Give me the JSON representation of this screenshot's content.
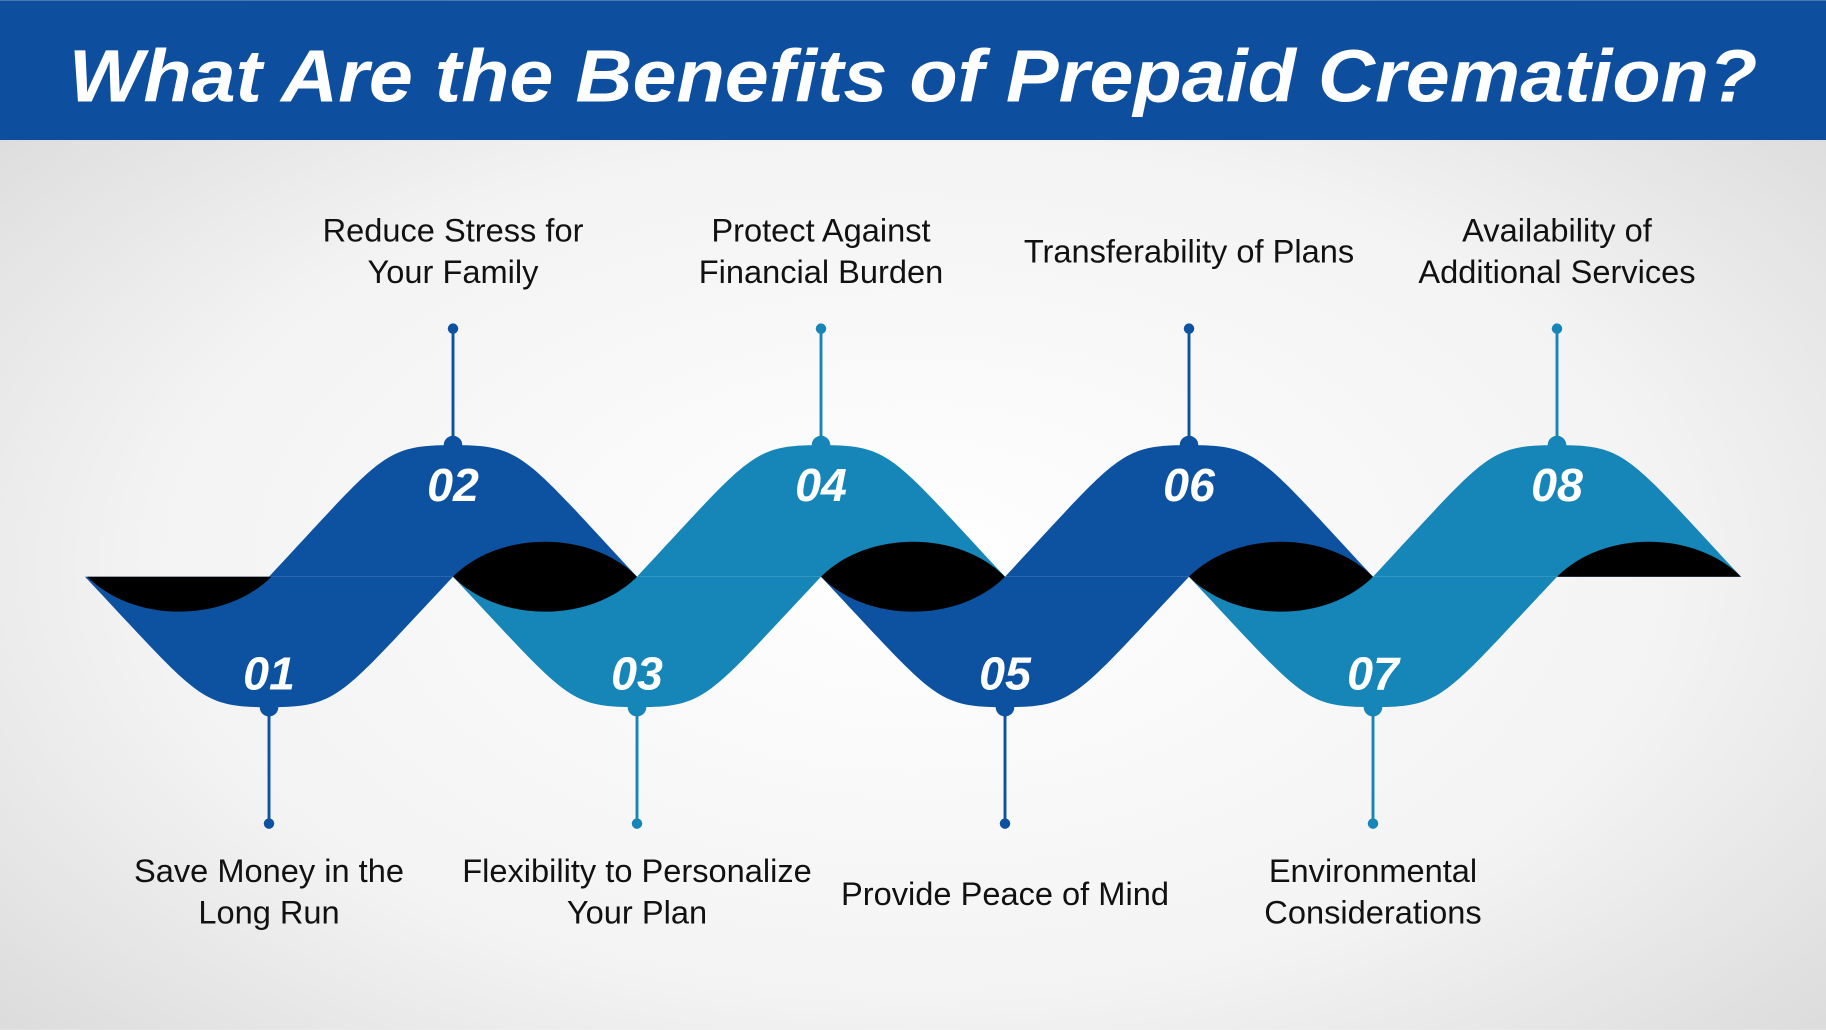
{
  "header": {
    "title": "What Are the Benefits of Prepaid Cremation?"
  },
  "colors": {
    "header": "#0d4f9e",
    "dark_blue": "#0c52a0",
    "light_blue": "#1686b8",
    "fold": "#000000"
  },
  "items": [
    {
      "number": "01",
      "position": "bottom",
      "lines": [
        "Save Money in the",
        "Long Run"
      ]
    },
    {
      "number": "02",
      "position": "top",
      "lines": [
        "Reduce Stress for",
        "Your Family"
      ]
    },
    {
      "number": "03",
      "position": "bottom",
      "lines": [
        "Flexibility to Personalize",
        "Your Plan"
      ]
    },
    {
      "number": "04",
      "position": "top",
      "lines": [
        "Protect Against",
        "Financial Burden"
      ]
    },
    {
      "number": "05",
      "position": "bottom",
      "lines": [
        "Provide Peace of Mind"
      ]
    },
    {
      "number": "06",
      "position": "top",
      "lines": [
        "Transferability of Plans"
      ]
    },
    {
      "number": "07",
      "position": "bottom",
      "lines": [
        "Environmental",
        "Considerations"
      ]
    },
    {
      "number": "08",
      "position": "top",
      "lines": [
        "Availability of",
        "Additional Services"
      ]
    }
  ]
}
